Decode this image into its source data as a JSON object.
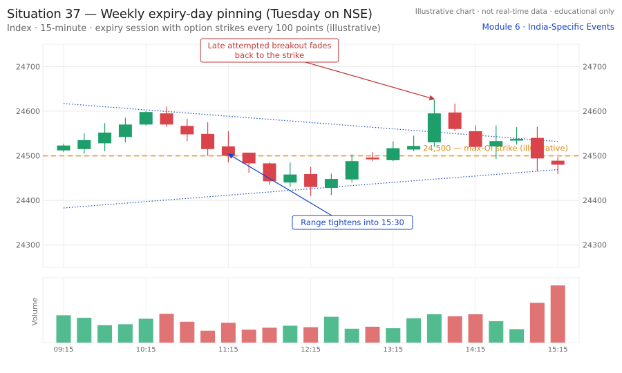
{
  "header": {
    "title": "Situation 37 — Weekly expiry-day pinning (Tuesday on NSE)",
    "subtitle": "Index · 15-minute · expiry session with option strikes every 100 points (illustrative)",
    "note": "Illustrative chart · not real-time data · educational only",
    "module_link": "Module 6 · India-Specific Events"
  },
  "colors": {
    "up": "#1e9e6b",
    "down": "#d9434a",
    "up_volume": "#52bb90",
    "down_volume": "#e07474",
    "strike_line": "#e8a85c",
    "strike_label": "#e08a1a",
    "upper_line": "#2a55c9",
    "lower_line": "#2a55c9"
  },
  "chart_data": {
    "type": "candlestick",
    "x_ticks": [
      "09:15",
      "10:15",
      "11:15",
      "12:15",
      "13:15",
      "14:15",
      "15:15"
    ],
    "y_ticks": [
      24300,
      24400,
      24500,
      24600,
      24700
    ],
    "ylim": [
      24250,
      24750
    ],
    "volume_label": "Volume",
    "candles": [
      {
        "o": 24512,
        "h": 24527,
        "l": 24508,
        "c": 24523
      },
      {
        "o": 24515,
        "h": 24550,
        "l": 24505,
        "c": 24535
      },
      {
        "o": 24528,
        "h": 24573,
        "l": 24510,
        "c": 24552
      },
      {
        "o": 24542,
        "h": 24585,
        "l": 24530,
        "c": 24570
      },
      {
        "o": 24570,
        "h": 24600,
        "l": 24568,
        "c": 24598
      },
      {
        "o": 24595,
        "h": 24610,
        "l": 24565,
        "c": 24570
      },
      {
        "o": 24567,
        "h": 24583,
        "l": 24533,
        "c": 24548
      },
      {
        "o": 24549,
        "h": 24575,
        "l": 24500,
        "c": 24515
      },
      {
        "o": 24521,
        "h": 24555,
        "l": 24485,
        "c": 24500
      },
      {
        "o": 24507,
        "h": 24507,
        "l": 24462,
        "c": 24483
      },
      {
        "o": 24483,
        "h": 24485,
        "l": 24435,
        "c": 24443
      },
      {
        "o": 24440,
        "h": 24485,
        "l": 24430,
        "c": 24458
      },
      {
        "o": 24459,
        "h": 24475,
        "l": 24410,
        "c": 24430
      },
      {
        "o": 24428,
        "h": 24460,
        "l": 24412,
        "c": 24448
      },
      {
        "o": 24447,
        "h": 24503,
        "l": 24440,
        "c": 24488
      },
      {
        "o": 24496,
        "h": 24508,
        "l": 24488,
        "c": 24492
      },
      {
        "o": 24490,
        "h": 24532,
        "l": 24488,
        "c": 24517
      },
      {
        "o": 24514,
        "h": 24545,
        "l": 24510,
        "c": 24522
      },
      {
        "o": 24530,
        "h": 24625,
        "l": 24520,
        "c": 24595
      },
      {
        "o": 24597,
        "h": 24617,
        "l": 24556,
        "c": 24560
      },
      {
        "o": 24555,
        "h": 24568,
        "l": 24513,
        "c": 24520
      },
      {
        "o": 24521,
        "h": 24568,
        "l": 24493,
        "c": 24533
      },
      {
        "o": 24534,
        "h": 24564,
        "l": 24525,
        "c": 24538
      },
      {
        "o": 24540,
        "h": 24565,
        "l": 24465,
        "c": 24494
      },
      {
        "o": 24489,
        "h": 24497,
        "l": 24459,
        "c": 24480
      }
    ],
    "volume": [
      0.55,
      0.5,
      0.35,
      0.37,
      0.48,
      0.58,
      0.42,
      0.24,
      0.4,
      0.26,
      0.3,
      0.34,
      0.31,
      0.52,
      0.28,
      0.32,
      0.29,
      0.49,
      0.57,
      0.53,
      0.57,
      0.43,
      0.27,
      0.8,
      1.15
    ],
    "strike": {
      "value": 24500,
      "label": "24,500 — max-OI strike (illustrative)"
    },
    "upper_trend": {
      "from": [
        0,
        24617
      ],
      "to": [
        24,
        24532
      ]
    },
    "lower_trend": {
      "from": [
        0,
        24383
      ],
      "to": [
        24,
        24469
      ]
    },
    "annotations": [
      {
        "text_lines": [
          "Late attempted breakout fades",
          "back to the strike"
        ],
        "color": "#c23b3b",
        "target": [
          18,
          24627
        ]
      },
      {
        "text_lines": [
          "Range tightens into 15:30"
        ],
        "color": "#1a47c9",
        "target": [
          8,
          24504
        ]
      }
    ]
  }
}
